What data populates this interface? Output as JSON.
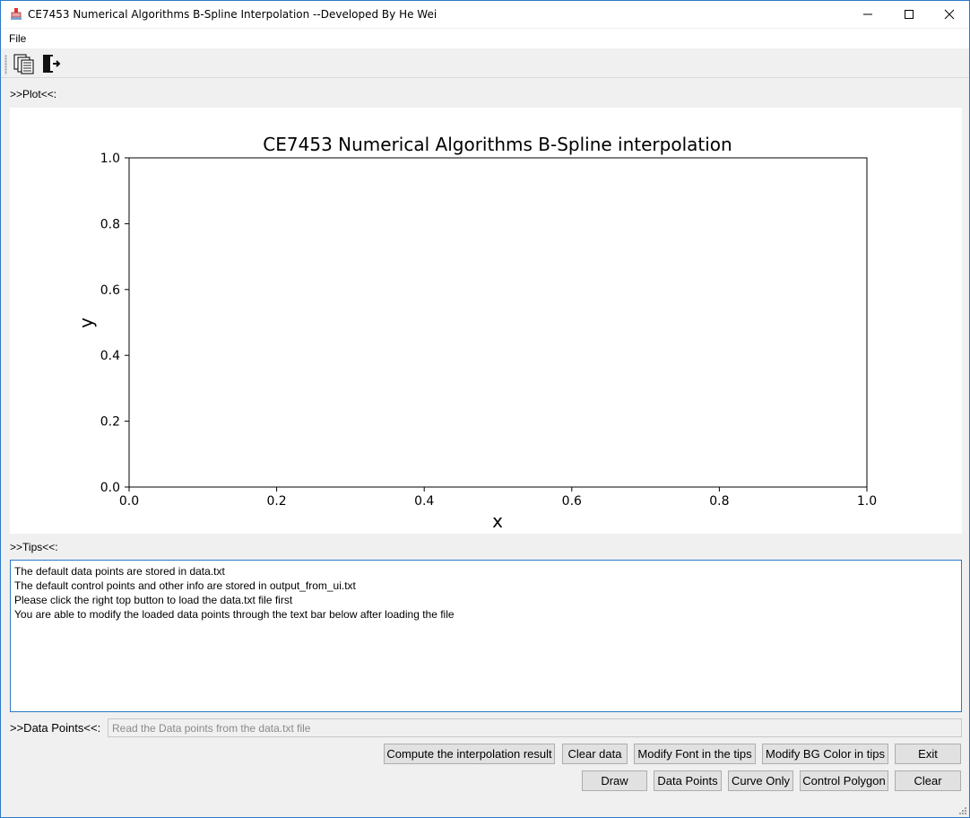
{
  "window": {
    "title": "CE7453 Numerical Algorithms B-Spline Interpolation --Developed By He Wei"
  },
  "menu": {
    "file_label": "File"
  },
  "toolbar": {
    "open_icon": "copy-files-icon",
    "exit_icon": "exit-door-icon"
  },
  "sections": {
    "plot_label": ">>Plot<<:",
    "tips_label": ">>Tips<<:",
    "data_points_label": ">>Data Points<<:"
  },
  "chart_data": {
    "type": "line",
    "title": "CE7453 Numerical Algorithms B-Spline interpolation",
    "xlabel": "x",
    "ylabel": "y",
    "xlim": [
      0.0,
      1.0
    ],
    "ylim": [
      0.0,
      1.0
    ],
    "xticks": [
      "0.0",
      "0.2",
      "0.4",
      "0.6",
      "0.8",
      "1.0"
    ],
    "yticks": [
      "0.0",
      "0.2",
      "0.4",
      "0.6",
      "0.8",
      "1.0"
    ],
    "series": [],
    "grid": false
  },
  "tips": {
    "lines": [
      "The default data points are stored in data.txt",
      "The default control points and other info are stored in output_from_ui.txt",
      "Please click the right top button to load the data.txt file first",
      "You are able to modify the loaded data points through the text bar below after loading the file"
    ]
  },
  "data_input": {
    "placeholder": "Read the Data points from the data.txt file",
    "value": ""
  },
  "buttons": {
    "compute": "Compute the interpolation result",
    "clear_data": "Clear data",
    "modify_font": "Modify Font in the tips",
    "modify_bg": "Modify BG Color in tips",
    "exit": "Exit",
    "draw": "Draw",
    "data_points": "Data Points",
    "curve_only": "Curve Only",
    "control_polygon": "Control Polygon",
    "clear": "Clear"
  }
}
